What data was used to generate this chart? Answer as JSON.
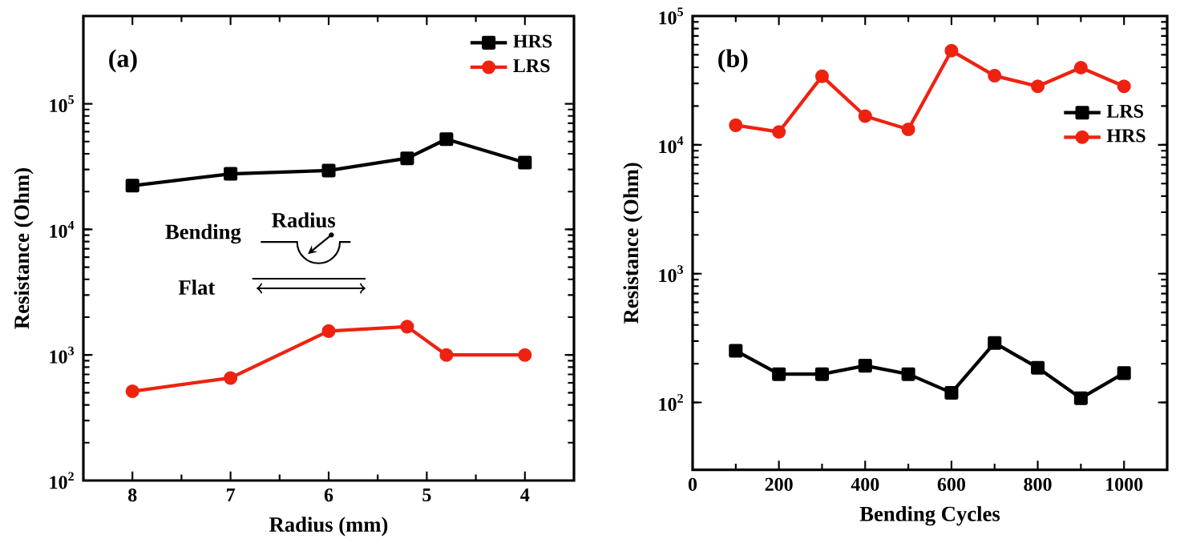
{
  "chart_data": [
    {
      "type": "line",
      "xlabel": "Radius (mm)",
      "ylabel": "Resistance (Ohm)",
      "log": "y",
      "legend": "top right",
      "xlim": [
        8.5,
        3.5
      ],
      "xticks": [
        8,
        7,
        6,
        5,
        4
      ],
      "ylim": [
        100,
        500000
      ],
      "yticks": [
        {
          "value": 100,
          "label": "10$^{2}$"
        },
        {
          "value": 1000,
          "label": "10$^{3}$"
        },
        {
          "value": 10000,
          "label": "10$^{4}$"
        },
        {
          "value": 100000,
          "label": "10$^{5}$"
        }
      ],
      "annotations": [
        "(a)",
        "Bending",
        "Radius",
        "Flat"
      ],
      "series": [
        {
          "name": "HRS",
          "color": "#000000",
          "marker": "square",
          "x": [
            8,
            7,
            6,
            5.2,
            4.8,
            4
          ],
          "values": [
            22300,
            27700,
            29400,
            36800,
            52300,
            34000
          ]
        },
        {
          "name": "LRS",
          "color": "#ee2211",
          "marker": "circle",
          "x": [
            8,
            7,
            6,
            5.2,
            4.8,
            4
          ],
          "values": [
            514,
            656,
            1550,
            1680,
            1000,
            1000
          ]
        }
      ]
    },
    {
      "type": "line",
      "xlabel": "Bending Cycles",
      "ylabel": "Resistance (Ohm)",
      "log": "y",
      "legend": "right",
      "xlim": [
        0,
        1100
      ],
      "xticks": [
        0,
        200,
        400,
        600,
        800,
        1000
      ],
      "ylim": [
        30,
        100000
      ],
      "yticks": [
        {
          "value": 100,
          "label": "10$^{2}$"
        },
        {
          "value": 1000,
          "label": "10$^{3}$"
        },
        {
          "value": 10000,
          "label": "10$^{4}$"
        },
        {
          "value": 100000,
          "label": "10$^{5}$"
        }
      ],
      "annotations": [
        "(b)"
      ],
      "series": [
        {
          "name": "LRS",
          "color": "#000000",
          "marker": "square",
          "x": [
            100,
            200,
            300,
            400,
            500,
            600,
            700,
            800,
            900,
            1000
          ],
          "values": [
            252,
            166,
            166,
            193,
            166,
            119,
            290,
            186,
            108,
            169
          ]
        },
        {
          "name": "HRS",
          "color": "#ee2211",
          "marker": "circle",
          "x": [
            100,
            200,
            300,
            400,
            500,
            600,
            700,
            800,
            900,
            1000
          ],
          "values": [
            14200,
            12600,
            34100,
            16700,
            13200,
            53800,
            34400,
            28500,
            39700,
            28500
          ]
        }
      ]
    }
  ]
}
